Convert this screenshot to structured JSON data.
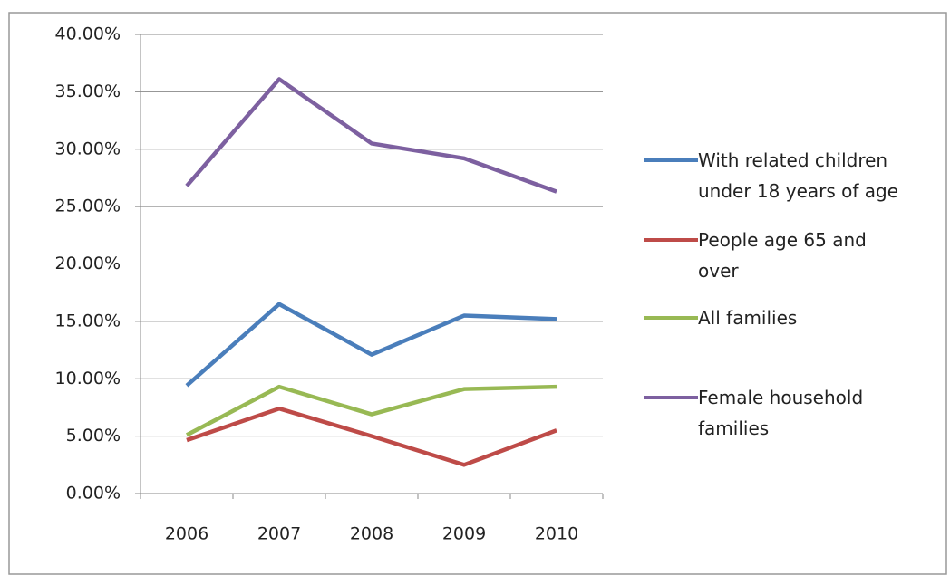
{
  "chart_data": {
    "type": "line",
    "categories": [
      "2006",
      "2007",
      "2008",
      "2009",
      "2010"
    ],
    "series": [
      {
        "name": "With related children under 18 years of age",
        "color": "#4a7ebb",
        "values": [
          9.4,
          16.5,
          12.1,
          15.5,
          15.2
        ]
      },
      {
        "name": "People age 65 and over",
        "color": "#be4b48",
        "values": [
          4.65,
          7.4,
          5.0,
          2.5,
          5.5
        ]
      },
      {
        "name": "All families",
        "color": "#98b954",
        "values": [
          5.1,
          9.3,
          6.9,
          9.1,
          9.3
        ]
      },
      {
        "name": "Female household families",
        "color": "#7d60a0",
        "values": [
          26.8,
          36.1,
          30.5,
          29.2,
          26.3
        ]
      }
    ],
    "ylim": [
      0,
      40
    ],
    "yticks": [
      {
        "value": 0,
        "label": "0.00%"
      },
      {
        "value": 5,
        "label": "5.00%"
      },
      {
        "value": 10,
        "label": "10.00%"
      },
      {
        "value": 15,
        "label": "15.00%"
      },
      {
        "value": 20,
        "label": "20.00%"
      },
      {
        "value": 25,
        "label": "25.00%"
      },
      {
        "value": 30,
        "label": "30.00%"
      },
      {
        "value": 35,
        "label": "35.00%"
      },
      {
        "value": 40,
        "label": "40.00%"
      }
    ],
    "grid": true,
    "legend": "right"
  }
}
